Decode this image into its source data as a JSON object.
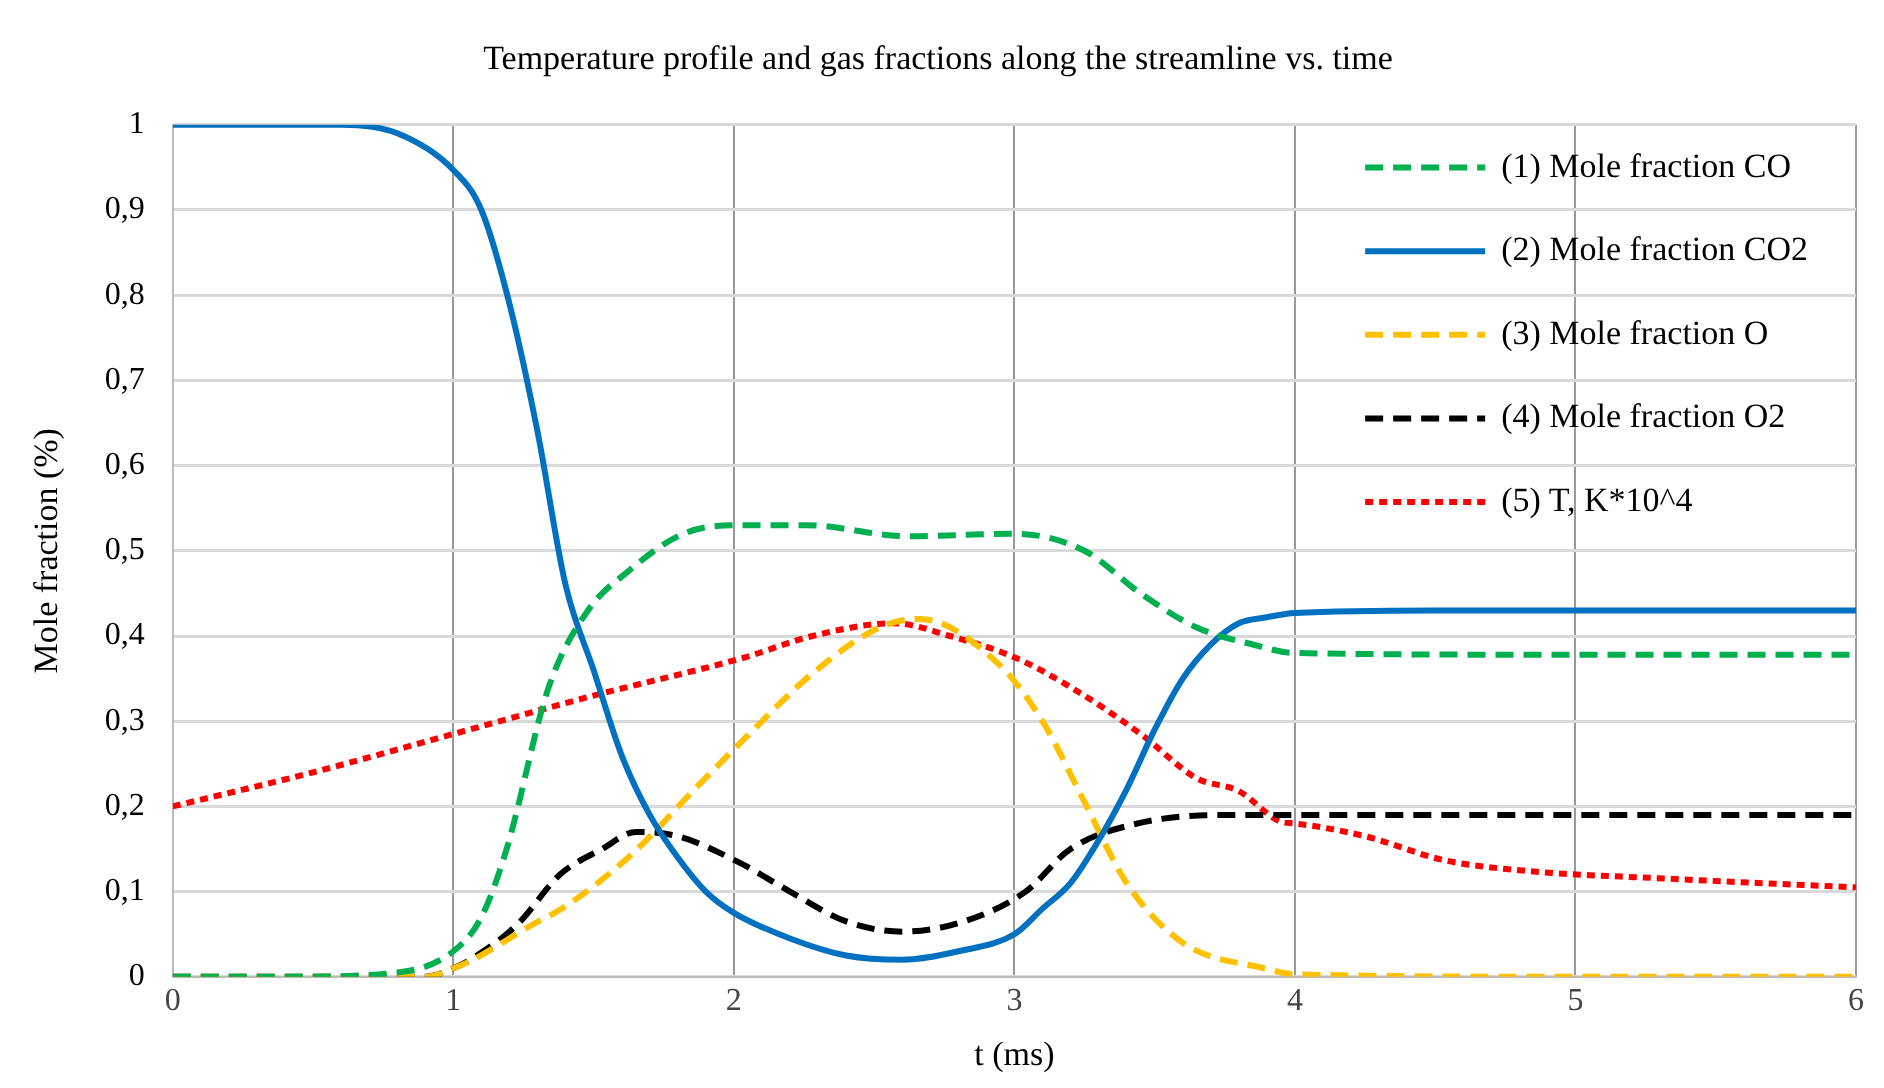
{
  "chart_data": {
    "type": "line",
    "title": "Temperature profile and gas fractions along the streamline vs. time",
    "xlabel": "t (ms)",
    "ylabel": "Mole fraction (%)",
    "xlim": [
      0,
      6
    ],
    "xticks": [
      0,
      1,
      2,
      3,
      4,
      5,
      6
    ],
    "ylim": [
      0,
      1
    ],
    "yticks": [
      {
        "value": 0,
        "label": "0"
      },
      {
        "value": 0.1,
        "label": "0,1"
      },
      {
        "value": 0.2,
        "label": "0,2"
      },
      {
        "value": 0.3,
        "label": "0,3"
      },
      {
        "value": 0.4,
        "label": "0,4"
      },
      {
        "value": 0.5,
        "label": "0,5"
      },
      {
        "value": 0.6,
        "label": "0,6"
      },
      {
        "value": 0.7,
        "label": "0,7"
      },
      {
        "value": 0.8,
        "label": "0,8"
      },
      {
        "value": 0.9,
        "label": "0,9"
      },
      {
        "value": 1,
        "label": "1"
      }
    ],
    "grid": true,
    "legend": "top right",
    "marker": "none",
    "series": [
      {
        "name": "(1) Mole fraction CO",
        "color": "#00b050",
        "line_style": "dashed",
        "x": [
          0,
          0.4,
          0.8,
          1.0,
          1.1,
          1.19,
          1.34,
          1.48,
          1.62,
          1.82,
          2.02,
          2.26,
          2.62,
          3.0,
          3.25,
          3.45,
          3.65,
          3.85,
          4.0,
          5.0,
          6.0
        ],
        "values": [
          0,
          0,
          0.005,
          0.03,
          0.07,
          0.15,
          0.34,
          0.43,
          0.475,
          0.52,
          0.53,
          0.53,
          0.517,
          0.52,
          0.5,
          0.45,
          0.41,
          0.39,
          0.38,
          0.378,
          0.378
        ]
      },
      {
        "name": "(2) Mole fraction CO2",
        "color": "#0070c0",
        "line_style": "solid",
        "x": [
          0,
          0.6,
          0.8,
          1.0,
          1.1,
          1.2,
          1.3,
          1.4,
          1.5,
          1.6,
          1.7,
          1.8,
          1.9,
          2.0,
          2.2,
          2.4,
          2.6,
          2.8,
          3.0,
          3.1,
          3.2,
          3.3,
          3.4,
          3.5,
          3.6,
          3.7,
          3.8,
          3.9,
          4.0,
          4.5,
          6.0
        ],
        "values": [
          1,
          1,
          0.99,
          0.947,
          0.9,
          0.79,
          0.64,
          0.46,
          0.36,
          0.26,
          0.19,
          0.14,
          0.1,
          0.075,
          0.045,
          0.025,
          0.02,
          0.03,
          0.05,
          0.08,
          0.11,
          0.16,
          0.22,
          0.29,
          0.35,
          0.39,
          0.415,
          0.422,
          0.427,
          0.43,
          0.43
        ]
      },
      {
        "name": "(3) Mole fraction O",
        "color": "#ffc000",
        "line_style": "dashed",
        "x": [
          0,
          0.9,
          1.0,
          1.07,
          1.26,
          1.41,
          1.64,
          1.86,
          2.04,
          2.28,
          2.52,
          2.66,
          2.95,
          3.1,
          3.25,
          3.4,
          3.6,
          3.89,
          4.0,
          5.0,
          6.0
        ],
        "values": [
          0,
          0,
          0.01,
          0.02,
          0.057,
          0.085,
          0.145,
          0.22,
          0.28,
          0.356,
          0.41,
          0.42,
          0.365,
          0.3,
          0.205,
          0.11,
          0.04,
          0.01,
          0.003,
          0,
          0
        ]
      },
      {
        "name": "(4) Mole fraction O2",
        "color": "#000000",
        "line_style": "dashed",
        "x": [
          0,
          0.9,
          1.0,
          1.06,
          1.23,
          1.38,
          1.53,
          1.65,
          1.8,
          2.02,
          2.2,
          2.4,
          2.6,
          2.82,
          3.04,
          3.2,
          3.44,
          3.75,
          4.0,
          5.0,
          6.0
        ],
        "values": [
          0,
          0,
          0.01,
          0.02,
          0.062,
          0.12,
          0.15,
          0.17,
          0.165,
          0.134,
          0.1,
          0.065,
          0.053,
          0.065,
          0.1,
          0.15,
          0.18,
          0.19,
          0.19,
          0.19,
          0.19
        ]
      },
      {
        "name": "(5) T, K*10^4",
        "color": "#ff0000",
        "line_style": "dotted",
        "x": [
          0,
          0.5,
          1.0,
          1.5,
          2.04,
          2.28,
          2.57,
          2.77,
          3.0,
          3.2,
          3.45,
          3.65,
          3.8,
          3.95,
          4.0,
          4.25,
          4.53,
          4.8,
          5.34,
          6.0
        ],
        "values": [
          0.2,
          0.24,
          0.285,
          0.33,
          0.375,
          0.4,
          0.415,
          0.4,
          0.375,
          0.34,
          0.285,
          0.233,
          0.218,
          0.182,
          0.18,
          0.165,
          0.137,
          0.125,
          0.115,
          0.105
        ]
      }
    ]
  }
}
